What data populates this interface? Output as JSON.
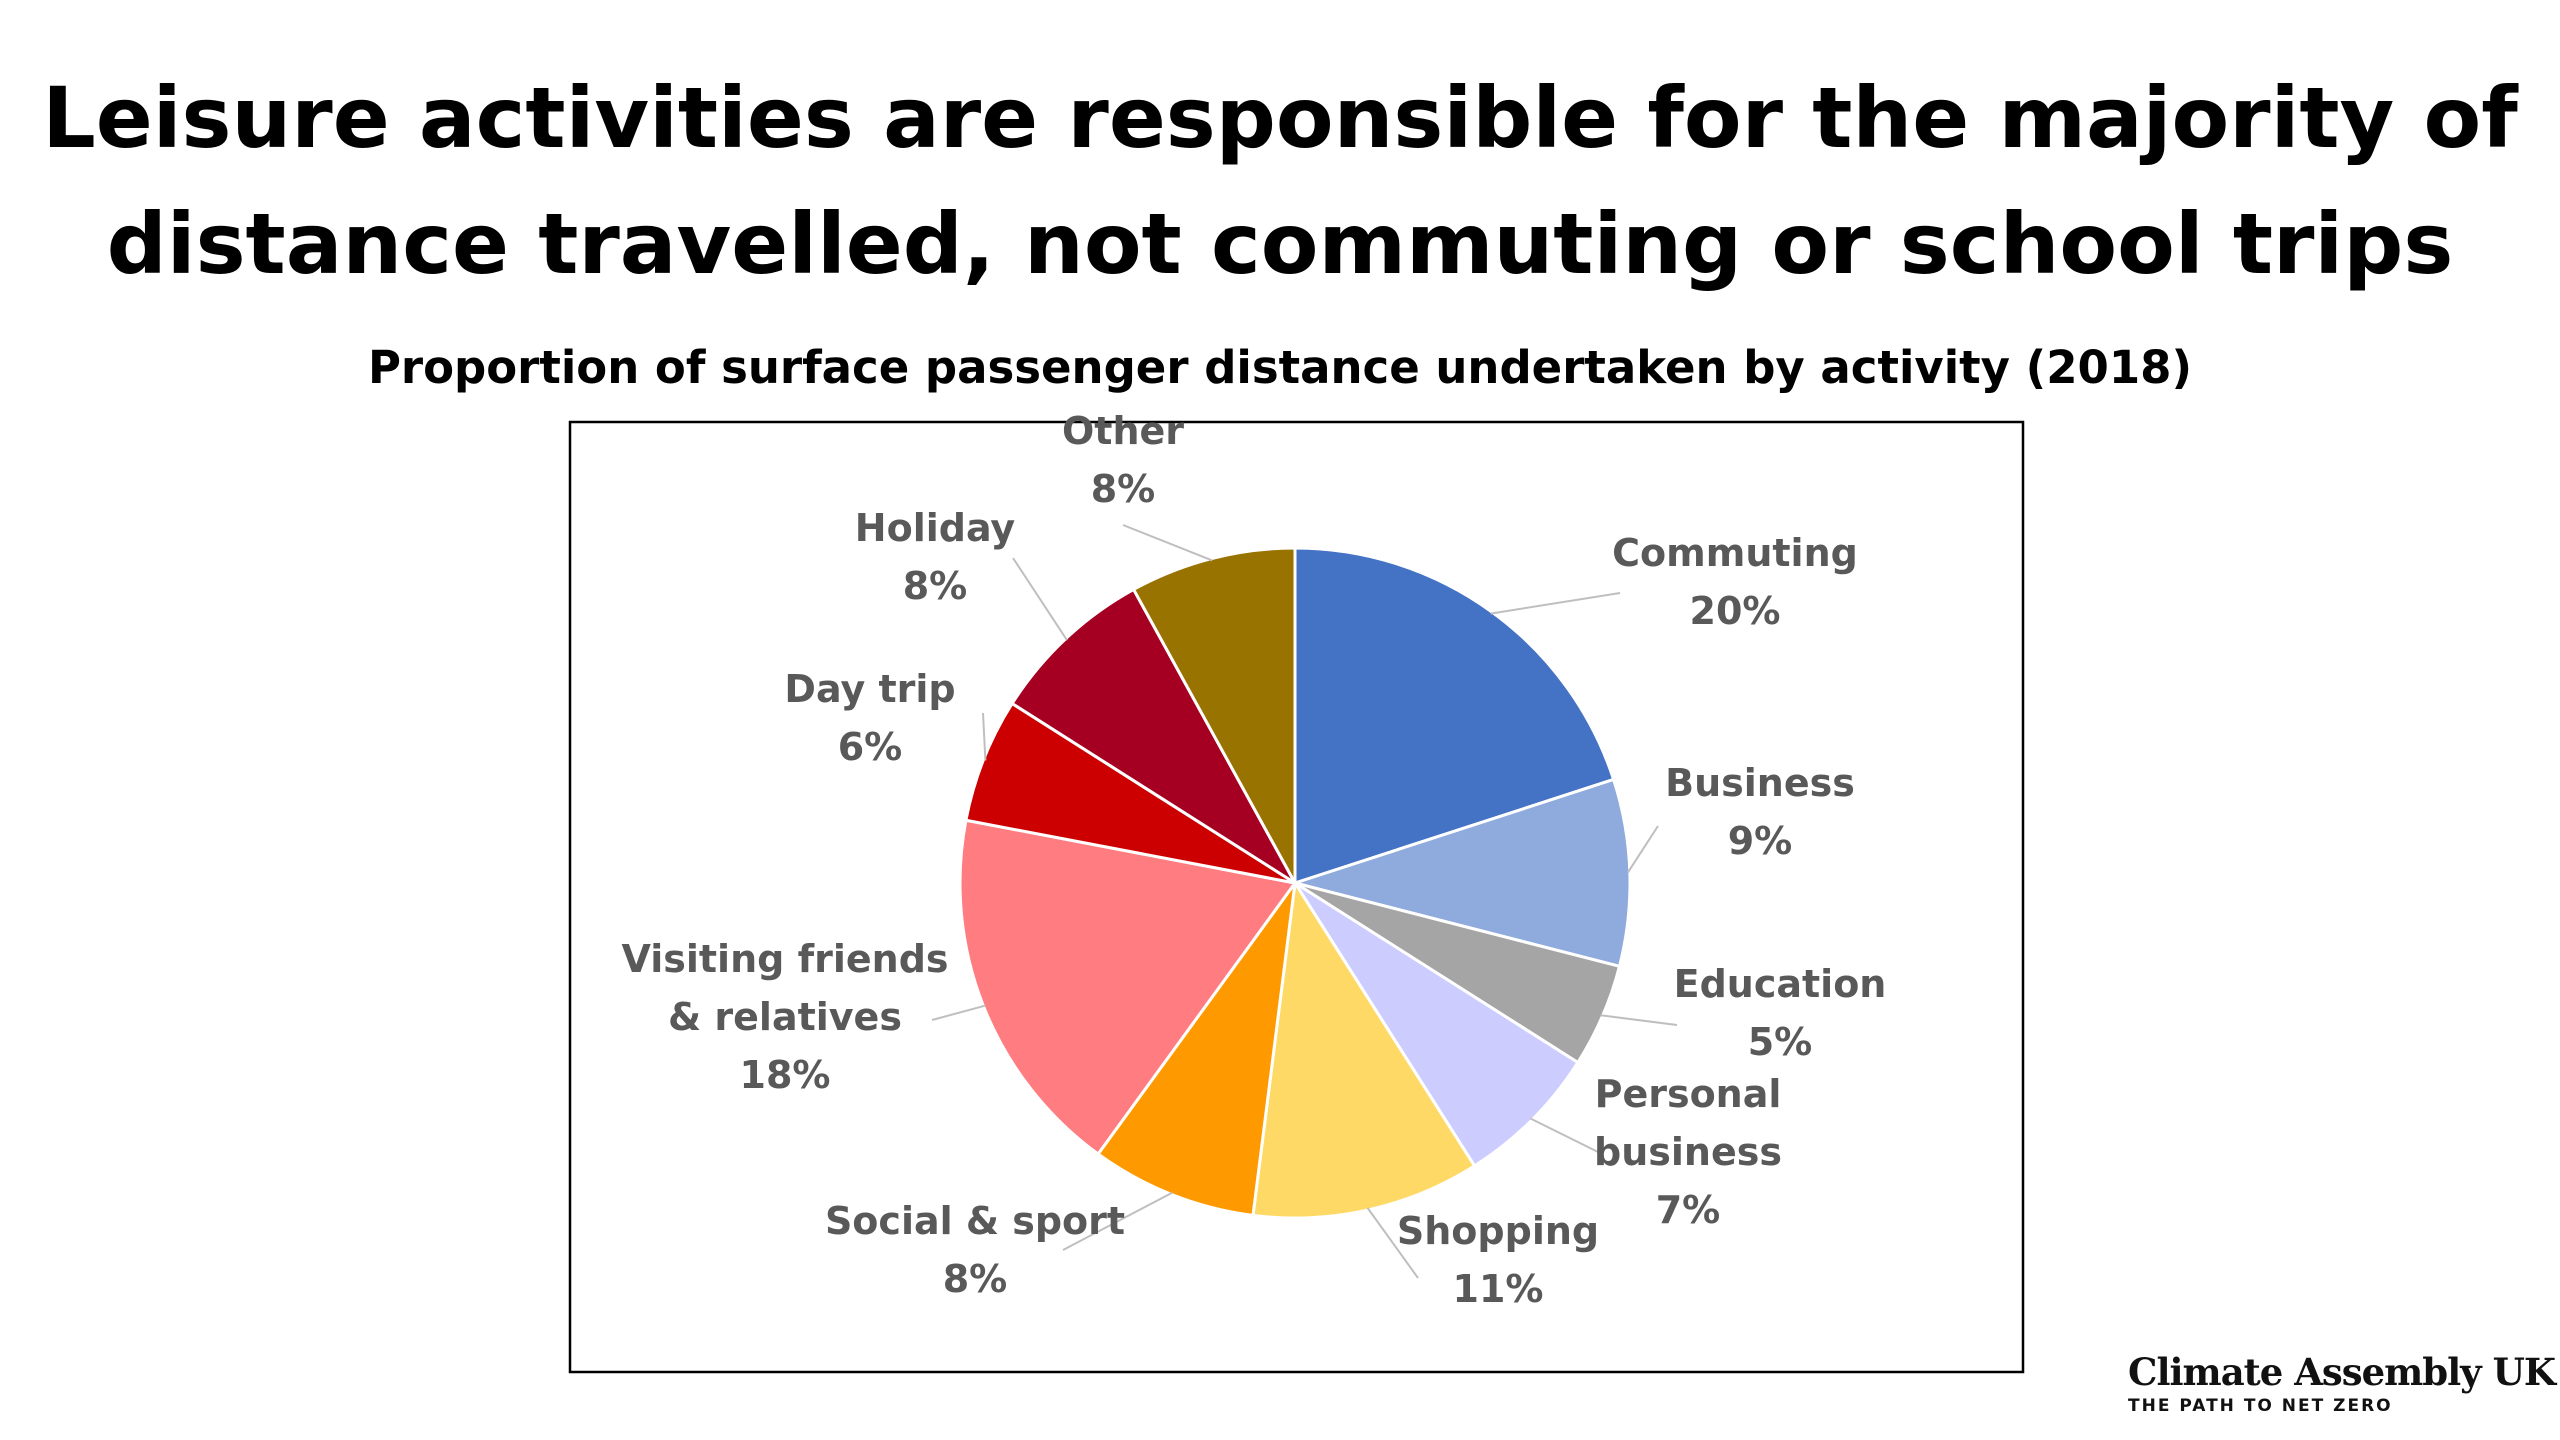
{
  "headline": {
    "line1": "Leisure activities are responsible for the majority of",
    "line2": "distance travelled, not commuting or school trips"
  },
  "chart_data": {
    "type": "pie",
    "title": "Proportion of surface passenger distance undertaken by activity (2018)",
    "legend": "none",
    "slices": [
      {
        "label_lines": [
          "Commuting"
        ],
        "value_label": "20%",
        "value": 20,
        "color": "#4472C4"
      },
      {
        "label_lines": [
          "Business"
        ],
        "value_label": "9%",
        "value": 9,
        "color": "#8FAADC"
      },
      {
        "label_lines": [
          "Education"
        ],
        "value_label": "5%",
        "value": 5,
        "color": "#A5A5A5"
      },
      {
        "label_lines": [
          "Personal",
          "business"
        ],
        "value_label": "7%",
        "value": 7,
        "color": "#CCCCFF"
      },
      {
        "label_lines": [
          "Shopping"
        ],
        "value_label": "11%",
        "value": 11,
        "color": "#FFD966"
      },
      {
        "label_lines": [
          "Social & sport"
        ],
        "value_label": "8%",
        "value": 8,
        "color": "#FF9900"
      },
      {
        "label_lines": [
          "Visiting friends",
          "& relatives"
        ],
        "value_label": "18%",
        "value": 18,
        "color": "#FF7C80"
      },
      {
        "label_lines": [
          "Day trip"
        ],
        "value_label": "6%",
        "value": 6,
        "color": "#CC0000"
      },
      {
        "label_lines": [
          "Holiday"
        ],
        "value_label": "8%",
        "value": 8,
        "color": "#A50021"
      },
      {
        "label_lines": [
          "Other"
        ],
        "value_label": "8%",
        "value": 8,
        "color": "#997300"
      }
    ]
  },
  "branding": {
    "name": "Climate Assembly UK",
    "tagline": "THE PATH TO NET ZERO"
  }
}
